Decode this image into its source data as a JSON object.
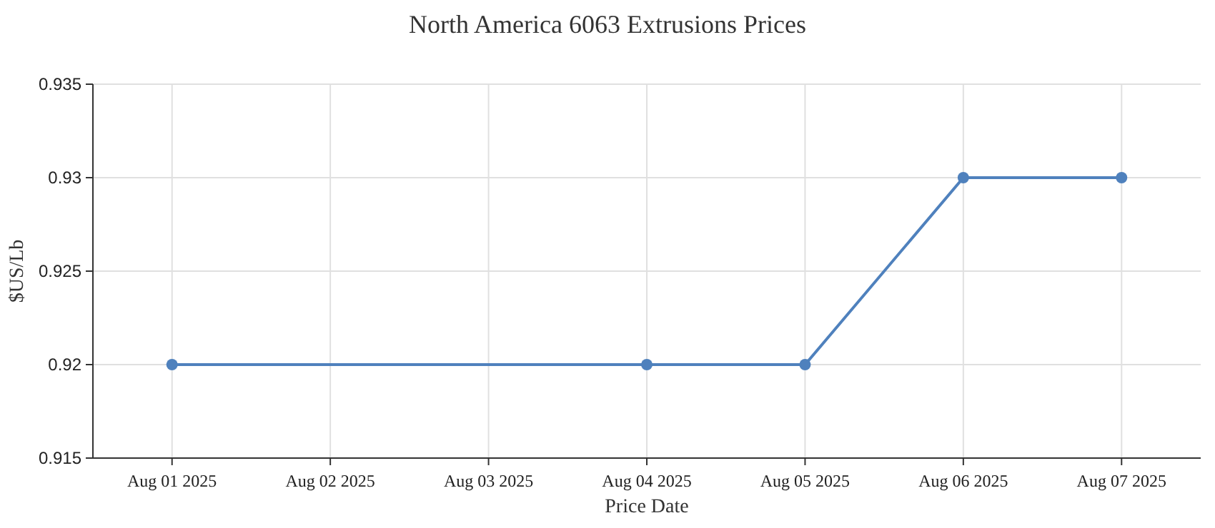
{
  "chart_data": {
    "type": "line",
    "title": "North America 6063 Extrusions Prices",
    "xlabel": "Price Date",
    "ylabel": "$US/Lb",
    "x": [
      "2025-08-01",
      "2025-08-04",
      "2025-08-05",
      "2025-08-06",
      "2025-08-07"
    ],
    "series": [
      {
        "color": "#4f81bd",
        "values": [
          0.92,
          0.92,
          0.92,
          0.93,
          0.93
        ]
      }
    ],
    "xlim": [
      "2025-07-31T12:00",
      "2025-08-07T12:00"
    ],
    "xticks": [
      {
        "value": "2025-08-01",
        "label": "Aug 01 2025"
      },
      {
        "value": "2025-08-02",
        "label": "Aug 02 2025"
      },
      {
        "value": "2025-08-03",
        "label": "Aug 03 2025"
      },
      {
        "value": "2025-08-04",
        "label": "Aug 04 2025"
      },
      {
        "value": "2025-08-05",
        "label": "Aug 05 2025"
      },
      {
        "value": "2025-08-06",
        "label": "Aug 06 2025"
      },
      {
        "value": "2025-08-07",
        "label": "Aug 07 2025"
      }
    ],
    "ylim": [
      0.915,
      0.935
    ],
    "yticks": [
      0.915,
      0.92,
      0.925,
      0.93,
      0.935
    ],
    "grid": true,
    "marker": "circle",
    "line_style": "solid"
  }
}
